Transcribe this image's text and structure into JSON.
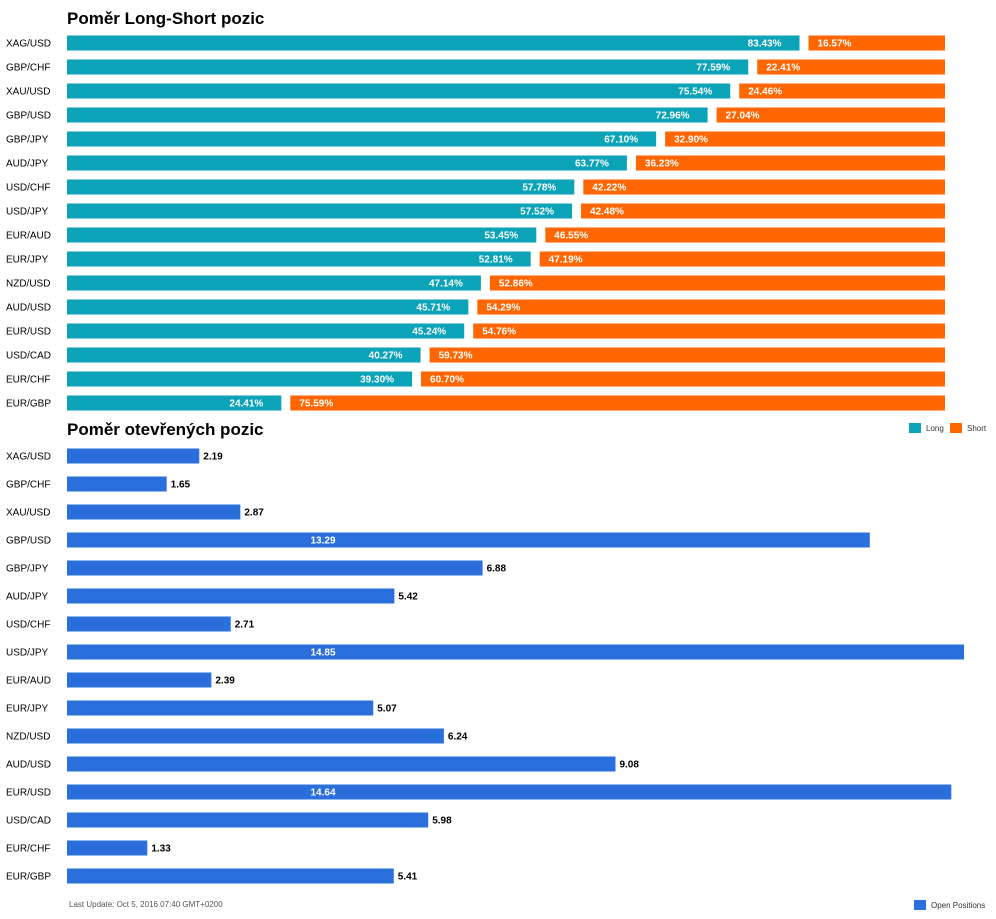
{
  "chart_data": [
    {
      "type": "bar",
      "stacked": true,
      "orientation": "horizontal",
      "title": "Poměr Long-Short pozic",
      "categories": [
        "XAG/USD",
        "GBP/CHF",
        "XAU/USD",
        "GBP/USD",
        "GBP/JPY",
        "AUD/JPY",
        "USD/CHF",
        "USD/JPY",
        "EUR/AUD",
        "EUR/JPY",
        "NZD/USD",
        "AUD/USD",
        "EUR/USD",
        "USD/CAD",
        "EUR/CHF",
        "EUR/GBP"
      ],
      "series": [
        {
          "name": "Long",
          "color": "#0aa3b8",
          "values": [
            83.43,
            77.59,
            75.54,
            72.96,
            67.1,
            63.77,
            57.78,
            57.52,
            53.45,
            52.81,
            47.14,
            45.71,
            45.24,
            40.27,
            39.3,
            24.41
          ],
          "labels": [
            "83.43%",
            "77.59%",
            "75.54%",
            "72.96%",
            "67.10%",
            "63.77%",
            "57.78%",
            "57.52%",
            "53.45%",
            "52.81%",
            "47.14%",
            "45.71%",
            "45.24%",
            "40.27%",
            "39.30%",
            "24.41%"
          ]
        },
        {
          "name": "Short",
          "color": "#ff6600",
          "values": [
            16.57,
            22.41,
            24.46,
            27.04,
            32.9,
            36.23,
            42.22,
            42.48,
            46.55,
            47.19,
            52.86,
            54.29,
            54.76,
            59.73,
            60.7,
            75.59
          ],
          "labels": [
            "16.57%",
            "22.41%",
            "24.46%",
            "27.04%",
            "32.90%",
            "36.23%",
            "42.22%",
            "42.48%",
            "46.55%",
            "47.19%",
            "52.86%",
            "54.29%",
            "54.76%",
            "59.73%",
            "60.70%",
            "75.59%"
          ]
        }
      ],
      "xlim": [
        0,
        100
      ],
      "legend": "top-right"
    },
    {
      "type": "bar",
      "orientation": "horizontal",
      "title": "Poměr otevřených pozic",
      "categories": [
        "XAG/USD",
        "GBP/CHF",
        "XAU/USD",
        "GBP/USD",
        "GBP/JPY",
        "AUD/JPY",
        "USD/CHF",
        "USD/JPY",
        "EUR/AUD",
        "EUR/JPY",
        "NZD/USD",
        "AUD/USD",
        "EUR/USD",
        "USD/CAD",
        "EUR/CHF",
        "EUR/GBP"
      ],
      "series": [
        {
          "name": "Open Positions",
          "color": "#2a6fdb",
          "values": [
            2.19,
            1.65,
            2.87,
            13.29,
            6.88,
            5.42,
            2.71,
            14.85,
            2.39,
            5.07,
            6.24,
            9.08,
            14.64,
            5.98,
            1.33,
            5.41
          ],
          "labels": [
            "2.19",
            "1.65",
            "2.87",
            "13.29",
            "6.88",
            "5.42",
            "2.71",
            "14.85",
            "2.39",
            "5.07",
            "6.24",
            "9.08",
            "14.64",
            "5.98",
            "1.33",
            "5.41"
          ]
        }
      ],
      "xlim": [
        0,
        14.85
      ],
      "legend": "bottom-right"
    }
  ],
  "footnote": "Last Update: Oct 5, 2016 07:40 GMT+0200"
}
